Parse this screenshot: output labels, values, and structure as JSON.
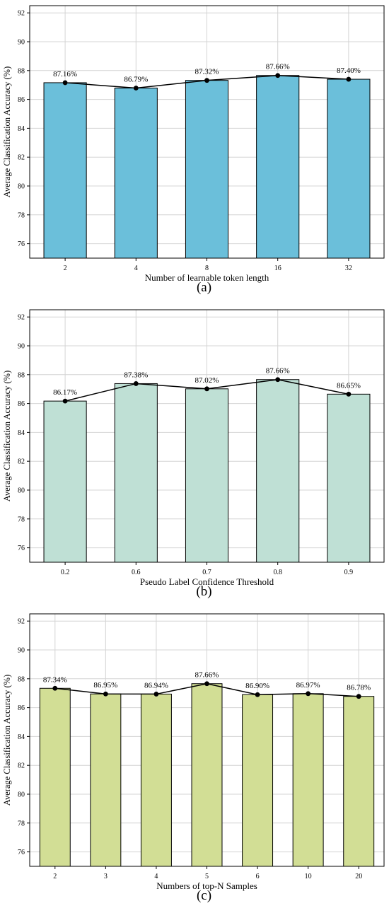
{
  "chart_data": [
    {
      "type": "bar",
      "caption": "(a)",
      "categories": [
        "2",
        "4",
        "8",
        "16",
        "32"
      ],
      "values": [
        87.16,
        86.79,
        87.32,
        87.66,
        87.4
      ],
      "data_labels": [
        "87.16%",
        "86.79%",
        "87.32%",
        "87.66%",
        "87.40%"
      ],
      "xlabel": "Number of learnable token length",
      "ylabel": "Average Classification Accuracy (%)",
      "ylim": [
        75,
        92.5
      ],
      "yticks": [
        76,
        78,
        80,
        82,
        84,
        86,
        88,
        90,
        92
      ],
      "grid": true,
      "line_overlay": true,
      "bar_color": "#6bbfda"
    },
    {
      "type": "bar",
      "caption": "(b)",
      "categories": [
        "0.2",
        "0.6",
        "0.7",
        "0.8",
        "0.9"
      ],
      "values": [
        86.17,
        87.38,
        87.02,
        87.66,
        86.65
      ],
      "data_labels": [
        "86.17%",
        "87.38%",
        "87.02%",
        "87.66%",
        "86.65%"
      ],
      "xlabel": "Pseudo Label Confidence Threshold",
      "ylabel": "Average Classification Accuracy (%)",
      "ylim": [
        75,
        92.5
      ],
      "yticks": [
        76,
        78,
        80,
        82,
        84,
        86,
        88,
        90,
        92
      ],
      "grid": true,
      "line_overlay": true,
      "bar_color": "#bfe0d5"
    },
    {
      "type": "bar",
      "caption": "(c)",
      "categories": [
        "2",
        "3",
        "4",
        "5",
        "6",
        "10",
        "20"
      ],
      "values": [
        87.34,
        86.95,
        86.94,
        87.66,
        86.9,
        86.97,
        86.78
      ],
      "data_labels": [
        "87.34%",
        "86.95%",
        "86.94%",
        "87.66%",
        "86.90%",
        "86.97%",
        "86.78%"
      ],
      "xlabel": "Numbers of top-N Samples",
      "ylabel": "Average Classification Accuracy (%)",
      "ylim": [
        75,
        92.5
      ],
      "yticks": [
        76,
        78,
        80,
        82,
        84,
        86,
        88,
        90,
        92
      ],
      "grid": true,
      "line_overlay": true,
      "bar_color": "#d2de95"
    }
  ]
}
